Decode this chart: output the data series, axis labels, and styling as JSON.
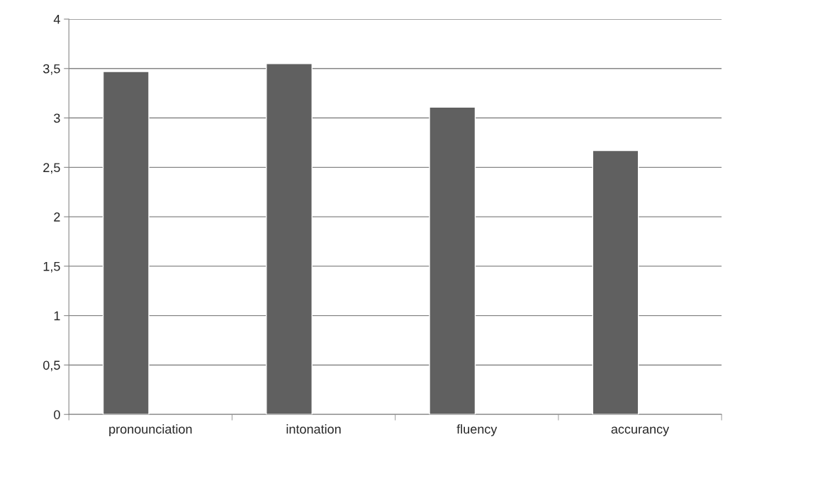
{
  "chart_data": {
    "type": "bar",
    "categories": [
      "pronounciation",
      "intonation",
      "fluency",
      "accurancy"
    ],
    "values": [
      3.47,
      3.55,
      3.11,
      2.67
    ],
    "color": "#606060",
    "ylim": [
      0,
      4
    ],
    "yticks": [
      0,
      {
        "value": 0.5,
        "label": "0,5"
      },
      1,
      {
        "value": 1.5,
        "label": "1,5"
      },
      2,
      {
        "value": 2.5,
        "label": "2,5"
      },
      3,
      {
        "value": 3.5,
        "label": "3,5"
      },
      4
    ],
    "grid": "y",
    "legend": false
  }
}
